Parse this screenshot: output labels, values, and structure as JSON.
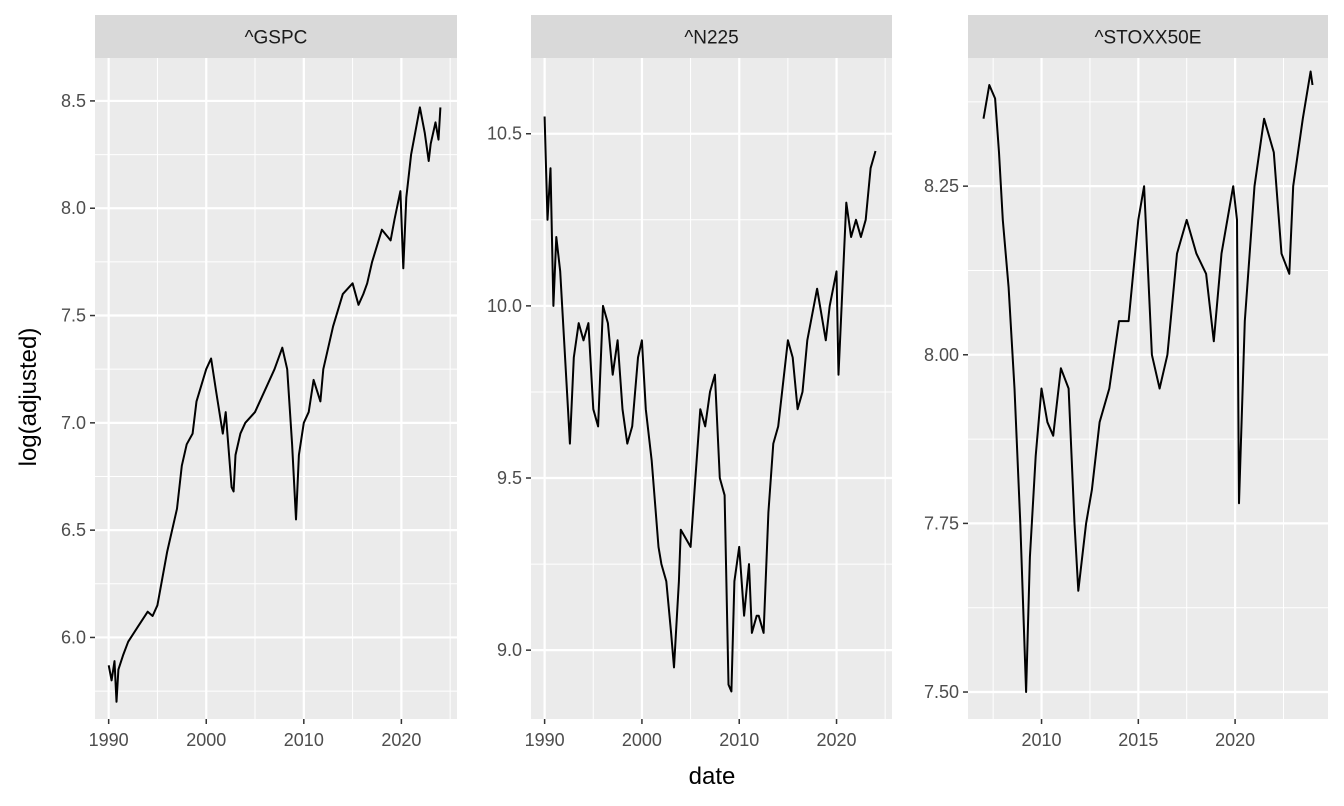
{
  "chart_data": {
    "type": "line",
    "xlabel": "date",
    "ylabel": "log(adjusted)",
    "colors": {
      "panel": "#ebebeb",
      "strip": "#d9d9d9",
      "grid": "#ffffff",
      "line": "#000000"
    },
    "panels": [
      {
        "name": "^GSPC",
        "xlim": [
          1988.6,
          2025.7
        ],
        "ylim": [
          5.62,
          8.7
        ],
        "x_ticks": [
          1990,
          2000,
          2010,
          2020
        ],
        "x_tick_labels": [
          "1990",
          "2000",
          "2010",
          "2020"
        ],
        "y_ticks": [
          6.0,
          6.5,
          7.0,
          7.5,
          8.0,
          8.5
        ],
        "y_tick_labels": [
          "6.0",
          "6.5",
          "7.0",
          "7.5",
          "8.0",
          "8.5"
        ],
        "series": [
          {
            "x": [
              1990.0,
              1990.3,
              1990.6,
              1990.8,
              1991.0,
              1991.5,
              1992.0,
              1993.0,
              1994.0,
              1994.5,
              1995.0,
              1996.0,
              1997.0,
              1997.5,
              1998.0,
              1998.6,
              1999.0,
              2000.0,
              2000.5,
              2001.0,
              2001.7,
              2002.0,
              2002.6,
              2002.8,
              2003.0,
              2003.5,
              2004.0,
              2005.0,
              2006.0,
              2007.0,
              2007.8,
              2008.3,
              2008.8,
              2009.2,
              2009.5,
              2010.0,
              2010.5,
              2011.0,
              2011.7,
              2012.0,
              2013.0,
              2014.0,
              2015.0,
              2015.6,
              2016.1,
              2016.5,
              2017.0,
              2018.0,
              2018.9,
              2019.3,
              2019.9,
              2020.2,
              2020.5,
              2021.0,
              2021.9,
              2022.4,
              2022.8,
              2023.0,
              2023.5,
              2023.8,
              2024.0
            ],
            "y": [
              5.87,
              5.8,
              5.89,
              5.7,
              5.85,
              5.92,
              5.98,
              6.05,
              6.12,
              6.1,
              6.15,
              6.4,
              6.6,
              6.8,
              6.9,
              6.95,
              7.1,
              7.25,
              7.3,
              7.15,
              6.95,
              7.05,
              6.7,
              6.68,
              6.85,
              6.95,
              7.0,
              7.05,
              7.15,
              7.25,
              7.35,
              7.25,
              6.9,
              6.55,
              6.85,
              7.0,
              7.05,
              7.2,
              7.1,
              7.25,
              7.45,
              7.6,
              7.65,
              7.55,
              7.6,
              7.65,
              7.75,
              7.9,
              7.85,
              7.95,
              8.08,
              7.72,
              8.05,
              8.25,
              8.47,
              8.35,
              8.22,
              8.3,
              8.4,
              8.32,
              8.47
            ]
          }
        ]
      },
      {
        "name": "^N225",
        "xlim": [
          1988.6,
          2025.7
        ],
        "ylim": [
          8.8,
          10.72
        ],
        "x_ticks": [
          1990,
          2000,
          2010,
          2020
        ],
        "x_tick_labels": [
          "1990",
          "2000",
          "2010",
          "2020"
        ],
        "y_ticks": [
          9.0,
          9.5,
          10.0,
          10.5
        ],
        "y_tick_labels": [
          "9.0",
          "9.5",
          "10.0",
          "10.5"
        ],
        "series": [
          {
            "x": [
              1990.0,
              1990.3,
              1990.6,
              1990.9,
              1991.2,
              1991.6,
              1992.0,
              1992.4,
              1992.6,
              1993.0,
              1993.5,
              1994.0,
              1994.5,
              1995.0,
              1995.5,
              1996.0,
              1996.5,
              1997.0,
              1997.5,
              1998.0,
              1998.5,
              1999.0,
              1999.6,
              2000.0,
              2000.4,
              2001.0,
              2001.7,
              2002.0,
              2002.5,
              2003.0,
              2003.3,
              2003.8,
              2004.0,
              2005.0,
              2005.5,
              2006.0,
              2006.5,
              2007.0,
              2007.5,
              2008.0,
              2008.5,
              2008.9,
              2009.2,
              2009.5,
              2010.0,
              2010.5,
              2011.0,
              2011.3,
              2011.8,
              2012.0,
              2012.5,
              2013.0,
              2013.5,
              2014.0,
              2015.0,
              2015.5,
              2016.0,
              2016.5,
              2017.0,
              2018.0,
              2018.9,
              2019.3,
              2020.0,
              2020.2,
              2020.6,
              2021.0,
              2021.5,
              2022.0,
              2022.5,
              2023.0,
              2023.5,
              2024.0
            ],
            "y": [
              10.55,
              10.25,
              10.4,
              10.0,
              10.2,
              10.1,
              9.9,
              9.7,
              9.6,
              9.85,
              9.95,
              9.9,
              9.95,
              9.7,
              9.65,
              10.0,
              9.95,
              9.8,
              9.9,
              9.7,
              9.6,
              9.65,
              9.85,
              9.9,
              9.7,
              9.55,
              9.3,
              9.25,
              9.2,
              9.05,
              8.95,
              9.2,
              9.35,
              9.3,
              9.5,
              9.7,
              9.65,
              9.75,
              9.8,
              9.5,
              9.45,
              8.9,
              8.88,
              9.2,
              9.3,
              9.1,
              9.25,
              9.05,
              9.1,
              9.1,
              9.05,
              9.4,
              9.6,
              9.65,
              9.9,
              9.85,
              9.7,
              9.75,
              9.9,
              10.05,
              9.9,
              10.0,
              10.1,
              9.8,
              10.05,
              10.3,
              10.2,
              10.25,
              10.2,
              10.25,
              10.4,
              10.45
            ]
          }
        ]
      },
      {
        "name": "^STOXX50E",
        "xlim": [
          2006.2,
          2024.8
        ],
        "ylim": [
          7.46,
          8.44
        ],
        "x_ticks": [
          2010,
          2015,
          2020
        ],
        "x_tick_labels": [
          "2010",
          "2015",
          "2020"
        ],
        "y_ticks": [
          7.5,
          7.75,
          8.0,
          8.25
        ],
        "y_tick_labels": [
          "7.50",
          "7.75",
          "8.00",
          "8.25"
        ],
        "series": [
          {
            "x": [
              2007.0,
              2007.3,
              2007.6,
              2007.8,
              2008.0,
              2008.3,
              2008.6,
              2008.9,
              2009.2,
              2009.4,
              2009.7,
              2010.0,
              2010.3,
              2010.6,
              2011.0,
              2011.4,
              2011.7,
              2011.9,
              2012.3,
              2012.6,
              2013.0,
              2013.5,
              2014.0,
              2014.5,
              2015.0,
              2015.3,
              2015.7,
              2016.1,
              2016.5,
              2017.0,
              2017.5,
              2018.0,
              2018.5,
              2018.9,
              2019.3,
              2019.9,
              2020.1,
              2020.2,
              2020.5,
              2021.0,
              2021.5,
              2022.0,
              2022.4,
              2022.8,
              2023.0,
              2023.5,
              2023.9,
              2024.0
            ],
            "y": [
              8.35,
              8.4,
              8.38,
              8.3,
              8.2,
              8.1,
              7.95,
              7.75,
              7.5,
              7.7,
              7.85,
              7.95,
              7.9,
              7.88,
              7.98,
              7.95,
              7.75,
              7.65,
              7.75,
              7.8,
              7.9,
              7.95,
              8.05,
              8.05,
              8.2,
              8.25,
              8.0,
              7.95,
              8.0,
              8.15,
              8.2,
              8.15,
              8.12,
              8.02,
              8.15,
              8.25,
              8.2,
              7.78,
              8.05,
              8.25,
              8.35,
              8.3,
              8.15,
              8.12,
              8.25,
              8.35,
              8.42,
              8.4
            ]
          }
        ]
      }
    ]
  }
}
